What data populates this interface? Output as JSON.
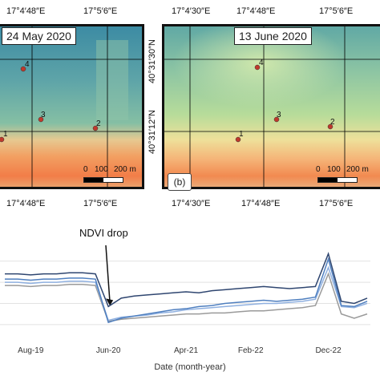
{
  "panel_a": {
    "date": "24 May 2020",
    "top_lon_labels": [
      "17°4′48″E",
      "17°5′6″E"
    ],
    "bottom_lon_labels": [
      "17°4′48″E",
      "17°5′6″E"
    ],
    "points": [
      "1",
      "2",
      "3",
      "4"
    ],
    "scale": {
      "zero": "0",
      "mid": "100",
      "end": "200 m"
    }
  },
  "panel_b": {
    "date": "13 June 2020",
    "tag": "(b)",
    "top_lon_labels": [
      "17°4′30″E",
      "17°4′48″E",
      "17°5′6″E"
    ],
    "bottom_lon_labels": [
      "17°4′30″E",
      "17°4′48″E",
      "17°5′6″E"
    ],
    "points": [
      "1",
      "2",
      "3",
      "4"
    ],
    "scale": {
      "zero": "0",
      "mid": "100",
      "end": "200 m"
    }
  },
  "lat_labels": [
    "40°31′30″N",
    "40°31′12″N"
  ],
  "colors": {
    "high_ndvi": "#2e7fa0",
    "mid_ndvi": "#a8d29a",
    "low_ndvi": "#f08a4b",
    "point": "#c0392b"
  },
  "chart_data": {
    "type": "line",
    "annotation": "NDVI drop",
    "xlabel": "Date (month-year)",
    "ylabel": "",
    "x_tick_labels": [
      "Aug-19",
      "Jun-20",
      "Apr-21",
      "Feb-22",
      "Dec-22"
    ],
    "x": [
      "Apr-19",
      "Jun-19",
      "Aug-19",
      "Oct-19",
      "Dec-19",
      "Feb-20",
      "Apr-20",
      "May-20",
      "Jun-20",
      "Jul-20",
      "Aug-20",
      "Oct-20",
      "Dec-20",
      "Feb-21",
      "Apr-21",
      "Jun-21",
      "Aug-21",
      "Oct-21",
      "Dec-21",
      "Feb-22",
      "Apr-22",
      "Jun-22",
      "Aug-22",
      "Oct-22",
      "Nov-22",
      "Dec-22",
      "Jan-23",
      "Feb-23",
      "Mar-23"
    ],
    "series": [
      {
        "color": "#2f4670",
        "values": [
          0.78,
          0.78,
          0.77,
          0.78,
          0.78,
          0.79,
          0.79,
          0.78,
          0.47,
          0.55,
          0.57,
          0.58,
          0.59,
          0.6,
          0.61,
          0.6,
          0.62,
          0.63,
          0.64,
          0.65,
          0.66,
          0.65,
          0.64,
          0.65,
          0.66,
          0.97,
          0.52,
          0.5,
          0.55
        ]
      },
      {
        "color": "#4f7fbf",
        "values": [
          0.73,
          0.73,
          0.72,
          0.73,
          0.73,
          0.74,
          0.74,
          0.73,
          0.32,
          0.36,
          0.38,
          0.4,
          0.42,
          0.44,
          0.45,
          0.47,
          0.48,
          0.5,
          0.51,
          0.52,
          0.53,
          0.52,
          0.53,
          0.54,
          0.56,
          0.92,
          0.48,
          0.47,
          0.52
        ]
      },
      {
        "color": "#8fb0e0",
        "values": [
          0.7,
          0.7,
          0.69,
          0.7,
          0.7,
          0.71,
          0.71,
          0.7,
          0.34,
          0.37,
          0.38,
          0.39,
          0.41,
          0.42,
          0.44,
          0.45,
          0.46,
          0.47,
          0.48,
          0.49,
          0.5,
          0.5,
          0.51,
          0.52,
          0.54,
          0.84,
          0.47,
          0.46,
          0.5
        ]
      },
      {
        "color": "#9a9a9a",
        "values": [
          0.67,
          0.67,
          0.66,
          0.67,
          0.67,
          0.68,
          0.68,
          0.67,
          0.33,
          0.35,
          0.36,
          0.37,
          0.38,
          0.39,
          0.4,
          0.4,
          0.41,
          0.41,
          0.42,
          0.43,
          0.43,
          0.44,
          0.45,
          0.46,
          0.48,
          0.78,
          0.4,
          0.36,
          0.4
        ]
      }
    ],
    "ylim": [
      0.2,
      1.05
    ],
    "grid": true
  }
}
